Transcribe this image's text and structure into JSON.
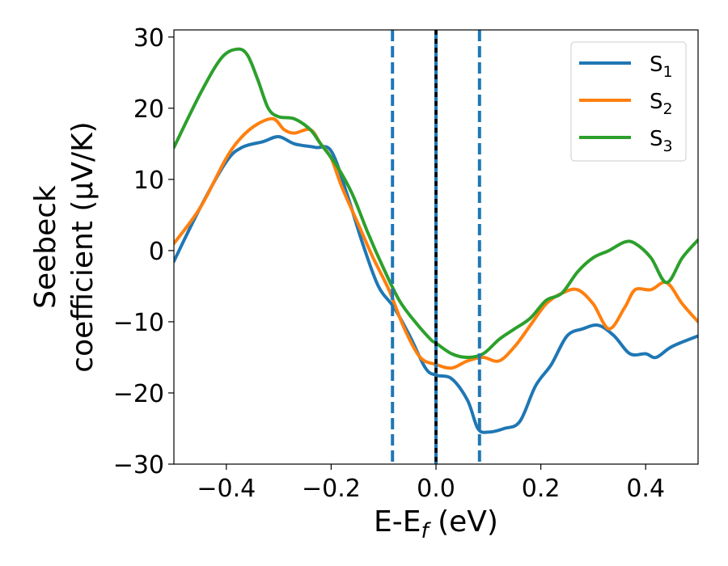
{
  "chart_data": {
    "type": "line",
    "xlabel": {
      "main": "E-E",
      "sub": "f",
      "suffix": " (eV)"
    },
    "ylabel": {
      "line1": "Seebeck",
      "line2": "coefficient  (μV/K)"
    },
    "xlim": [
      -0.5,
      0.5
    ],
    "ylim": [
      -30,
      31
    ],
    "xticks": [
      {
        "value": -0.4,
        "label": "−0.4"
      },
      {
        "value": -0.2,
        "label": "−0.2"
      },
      {
        "value": 0.0,
        "label": "0.0"
      },
      {
        "value": 0.2,
        "label": "0.2"
      },
      {
        "value": 0.4,
        "label": "0.4"
      }
    ],
    "yticks": [
      {
        "value": 30,
        "label": "30"
      },
      {
        "value": 20,
        "label": "20"
      },
      {
        "value": 10,
        "label": "10"
      },
      {
        "value": 0,
        "label": "0"
      },
      {
        "value": -10,
        "label": "−10"
      },
      {
        "value": -20,
        "label": "−20"
      },
      {
        "value": -30,
        "label": "−30"
      }
    ],
    "grid": false,
    "legend_position": "top-right",
    "vlines": [
      {
        "x": -0.083,
        "color": "#1f77b4",
        "style": "dashed"
      },
      {
        "x": 0.0,
        "color": "#1f77b4",
        "style": "solid"
      },
      {
        "x": 0.0,
        "color": "#000000",
        "style": "dashed"
      },
      {
        "x": 0.083,
        "color": "#1f77b4",
        "style": "dashed"
      }
    ],
    "series": [
      {
        "name": "S",
        "sub": "1",
        "color": "#1f77b4",
        "x": [
          -0.5,
          -0.45,
          -0.4,
          -0.37,
          -0.33,
          -0.3,
          -0.27,
          -0.23,
          -0.2,
          -0.17,
          -0.14,
          -0.11,
          -0.08,
          -0.05,
          -0.02,
          0.0,
          0.03,
          0.06,
          0.08,
          0.1,
          0.13,
          0.16,
          0.19,
          0.22,
          0.25,
          0.28,
          0.31,
          0.34,
          0.37,
          0.4,
          0.42,
          0.45,
          0.5
        ],
        "y": [
          -1.5,
          6,
          12.5,
          14.5,
          15.3,
          16,
          15,
          14.5,
          14,
          8,
          1,
          -5,
          -8,
          -12,
          -16.5,
          -17.5,
          -18,
          -21,
          -25,
          -25.5,
          -25,
          -24,
          -19,
          -16,
          -12,
          -11,
          -10.5,
          -12,
          -14.5,
          -14.5,
          -15,
          -13.5,
          -12
        ]
      },
      {
        "name": "S",
        "sub": "2",
        "color": "#ff7f0e",
        "x": [
          -0.5,
          -0.45,
          -0.4,
          -0.37,
          -0.34,
          -0.31,
          -0.29,
          -0.27,
          -0.24,
          -0.22,
          -0.2,
          -0.18,
          -0.15,
          -0.12,
          -0.09,
          -0.06,
          -0.03,
          0.0,
          0.03,
          0.06,
          0.09,
          0.12,
          0.15,
          0.18,
          0.21,
          0.24,
          0.27,
          0.3,
          0.33,
          0.36,
          0.38,
          0.41,
          0.44,
          0.47,
          0.5
        ],
        "y": [
          1,
          6,
          13,
          16,
          17.8,
          18.5,
          17,
          16.5,
          17,
          15,
          13,
          9,
          4,
          -1,
          -5.5,
          -11,
          -15,
          -16,
          -16.5,
          -15.5,
          -15,
          -15.5,
          -13.5,
          -10.5,
          -7.5,
          -6,
          -5.5,
          -7.5,
          -11,
          -8,
          -5.5,
          -5.5,
          -4.5,
          -7.5,
          -10
        ]
      },
      {
        "name": "S",
        "sub": "3",
        "color": "#2ca02c",
        "x": [
          -0.5,
          -0.45,
          -0.41,
          -0.38,
          -0.36,
          -0.34,
          -0.32,
          -0.3,
          -0.27,
          -0.24,
          -0.22,
          -0.19,
          -0.16,
          -0.13,
          -0.1,
          -0.07,
          -0.04,
          -0.01,
          0.0,
          0.03,
          0.06,
          0.09,
          0.12,
          0.15,
          0.18,
          0.21,
          0.24,
          0.27,
          0.3,
          0.33,
          0.36,
          0.38,
          0.41,
          0.44,
          0.47,
          0.5
        ],
        "y": [
          14.5,
          22,
          27,
          28.3,
          27.5,
          24,
          20,
          18.8,
          18.5,
          17,
          15,
          12,
          8,
          2.5,
          -2.5,
          -7,
          -10,
          -12.5,
          -13,
          -14.5,
          -15,
          -14.5,
          -12.5,
          -11,
          -9.5,
          -7,
          -6,
          -3,
          -1,
          0,
          1.2,
          1,
          -1,
          -4.5,
          -1,
          1.5
        ]
      }
    ]
  }
}
